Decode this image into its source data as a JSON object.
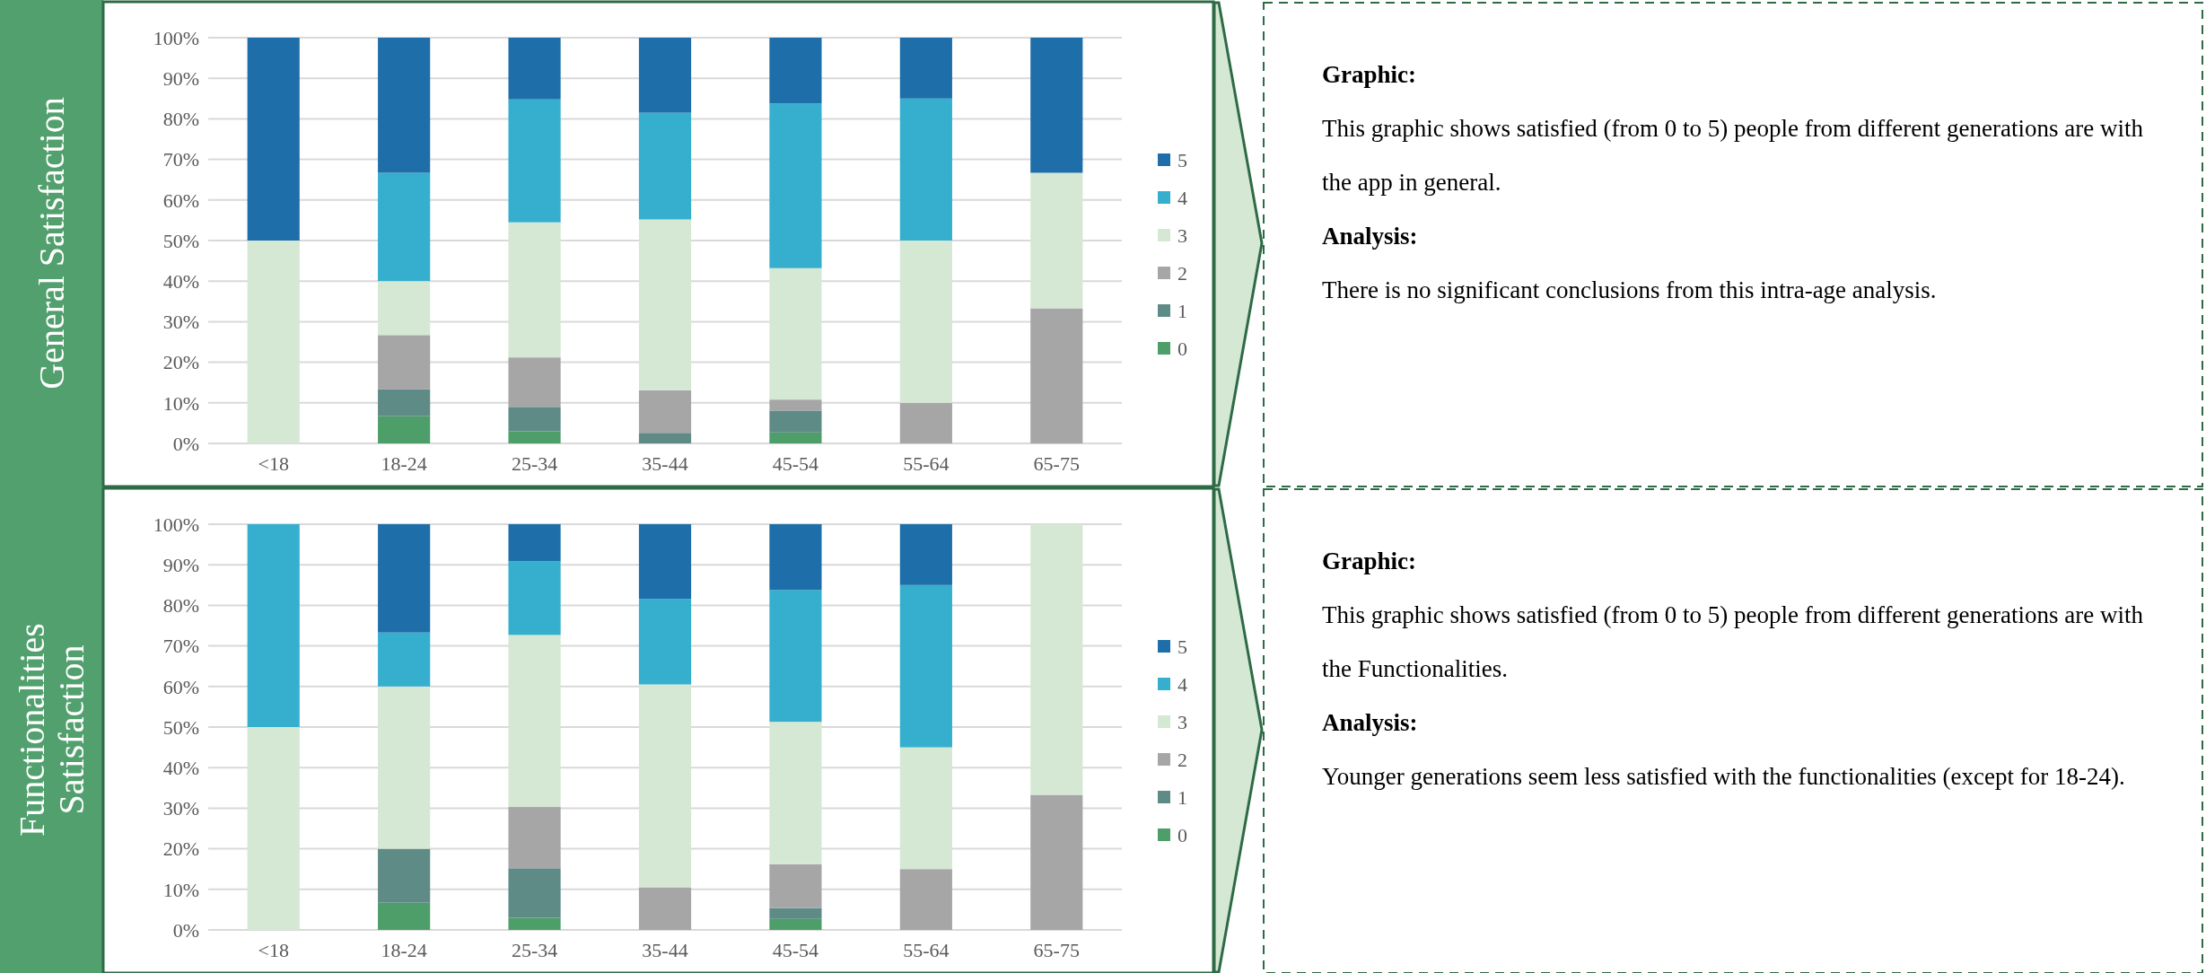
{
  "chart_data": [
    {
      "type": "bar",
      "title": "General Satisfaction",
      "categories": [
        "<18",
        "18-24",
        "25-34",
        "35-44",
        "45-54",
        "55-64",
        "65-75"
      ],
      "stacked": true,
      "grid": "y",
      "legend": "right",
      "ylim": [
        0,
        100
      ],
      "yticks": [
        {
          "value": 0,
          "label": "0%"
        },
        {
          "value": 10,
          "label": "10%"
        },
        {
          "value": 20,
          "label": "20%"
        },
        {
          "value": 30,
          "label": "30%"
        },
        {
          "value": 40,
          "label": "40%"
        },
        {
          "value": 50,
          "label": "50%"
        },
        {
          "value": 60,
          "label": "60%"
        },
        {
          "value": 70,
          "label": "70%"
        },
        {
          "value": 80,
          "label": "80%"
        },
        {
          "value": 90,
          "label": "90%"
        },
        {
          "value": 100,
          "label": "100%"
        }
      ],
      "series": [
        {
          "name": "0",
          "color": "#4e9e6a",
          "values": [
            0,
            6.7,
            3,
            0,
            2.7,
            0,
            0
          ]
        },
        {
          "name": "1",
          "color": "#5f8b87",
          "values": [
            0,
            6.6,
            6,
            2.6,
            5.4,
            0,
            0
          ]
        },
        {
          "name": "2",
          "color": "#a6a6a6",
          "values": [
            0,
            13.4,
            12.2,
            10.5,
            2.7,
            10,
            33.3
          ]
        },
        {
          "name": "3",
          "color": "#d5e8d4",
          "values": [
            50,
            13.3,
            33.3,
            42.1,
            32.4,
            40,
            33.4
          ]
        },
        {
          "name": "4",
          "color": "#36afcf",
          "values": [
            0,
            26.7,
            30.3,
            26.3,
            40.6,
            35,
            0
          ]
        },
        {
          "name": "5",
          "color": "#1e6fa9",
          "values": [
            50,
            33.3,
            15.2,
            18.5,
            16.2,
            15,
            33.3
          ]
        }
      ]
    },
    {
      "type": "other",
      "annotations": [
        "Graphic:",
        "This graphic shows satisfied (from 0 to 5) people from different generations are with the app in general.",
        "Analysis:",
        "There is no significant conclusions from this intra-age analysis."
      ]
    },
    {
      "type": "bar",
      "title": "Functionalities Satisfaction",
      "categories": [
        "<18",
        "18-24",
        "25-34",
        "35-44",
        "45-54",
        "55-64",
        "65-75"
      ],
      "stacked": true,
      "grid": "y",
      "legend": "right",
      "ylim": [
        0,
        100
      ],
      "yticks": [
        {
          "value": 0,
          "label": "0%"
        },
        {
          "value": 10,
          "label": "10%"
        },
        {
          "value": 20,
          "label": "20%"
        },
        {
          "value": 30,
          "label": "30%"
        },
        {
          "value": 40,
          "label": "40%"
        },
        {
          "value": 50,
          "label": "50%"
        },
        {
          "value": 60,
          "label": "60%"
        },
        {
          "value": 70,
          "label": "70%"
        },
        {
          "value": 80,
          "label": "80%"
        },
        {
          "value": 90,
          "label": "90%"
        },
        {
          "value": 100,
          "label": "100%"
        }
      ],
      "series": [
        {
          "name": "0",
          "color": "#4e9e6a",
          "values": [
            0,
            6.7,
            3,
            0,
            2.7,
            0,
            0
          ]
        },
        {
          "name": "1",
          "color": "#5f8b87",
          "values": [
            0,
            13.3,
            12.2,
            0,
            2.7,
            0,
            0
          ]
        },
        {
          "name": "2",
          "color": "#a6a6a6",
          "values": [
            0,
            0,
            15.1,
            10.5,
            10.8,
            15,
            33.3
          ]
        },
        {
          "name": "3",
          "color": "#d5e8d4",
          "values": [
            50,
            40,
            42.4,
            50,
            35.1,
            30,
            66.7
          ]
        },
        {
          "name": "4",
          "color": "#36afcf",
          "values": [
            50,
            13.3,
            18.2,
            21.1,
            32.5,
            40,
            0
          ]
        },
        {
          "name": "5",
          "color": "#1e6fa9",
          "values": [
            0,
            26.7,
            9.1,
            18.4,
            16.2,
            15,
            0
          ]
        }
      ]
    },
    {
      "type": "other",
      "annotations": [
        "Graphic:",
        "This graphic shows satisfied (from 0 to 5) people from different generations are with the Functionalities.",
        "Analysis:",
        "Younger generations seem less satisfied with the functionalities (except for 18-24)."
      ]
    }
  ]
}
